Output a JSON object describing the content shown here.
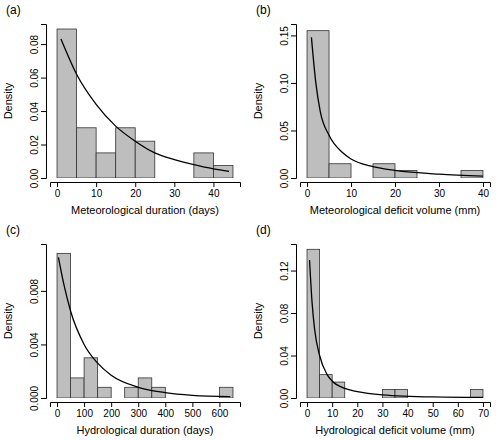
{
  "chart_data": [
    {
      "type": "histogram",
      "title": "(a)",
      "x_label": "Meteorological duration (days)",
      "y_label": "Density",
      "bins": [
        0,
        5,
        10,
        15,
        20,
        25,
        30,
        35,
        40,
        45
      ],
      "counts": [
        0.089,
        0.03,
        0.015,
        0.03,
        0.022,
        0,
        0,
        0.015,
        0.0075
      ],
      "color": "#bebebe",
      "xlim": [
        -1.8,
        46.8
      ],
      "ylim": [
        0,
        0.092
      ],
      "xticks": [
        0,
        10,
        20,
        30,
        40
      ],
      "yticks": [
        {
          "value": 0,
          "label": "0.00"
        },
        {
          "value": 0.02,
          "label": "0.02"
        },
        {
          "value": 0.04,
          "label": "0.04"
        },
        {
          "value": 0.06,
          "label": "0.06"
        },
        {
          "value": 0.08,
          "label": "0.08"
        }
      ],
      "series": [
        {
          "type": "line",
          "color": "#000000",
          "x": [
            1,
            5,
            10,
            15,
            20,
            25,
            30,
            35,
            40,
            44
          ],
          "values": [
            0.083,
            0.062,
            0.044,
            0.031,
            0.022,
            0.015,
            0.011,
            0.008,
            0.0055,
            0.004
          ]
        }
      ]
    },
    {
      "type": "histogram",
      "title": "(b)",
      "x_label": "Meteorological deficit volume (mm)",
      "y_label": "Density",
      "bins": [
        0,
        5,
        10,
        15,
        20,
        25,
        30,
        35,
        40
      ],
      "counts": [
        0.155,
        0.015,
        0,
        0.015,
        0.008,
        0,
        0,
        0.008
      ],
      "color": "#bebebe",
      "xlim": [
        -1.6,
        41.6
      ],
      "ylim": [
        0,
        0.162
      ],
      "xticks": [
        0,
        10,
        20,
        30,
        40
      ],
      "yticks": [
        {
          "value": 0,
          "label": "0.00"
        },
        {
          "value": 0.05,
          "label": "0.05"
        },
        {
          "value": 0.1,
          "label": "0.10"
        },
        {
          "value": 0.15,
          "label": "0.15"
        }
      ],
      "series": [
        {
          "type": "line",
          "color": "#000000",
          "x": [
            1,
            2,
            3,
            5,
            8,
            10,
            15,
            20,
            30,
            40
          ],
          "values": [
            0.148,
            0.1,
            0.07,
            0.045,
            0.027,
            0.02,
            0.012,
            0.008,
            0.004,
            0.002
          ]
        }
      ]
    },
    {
      "type": "histogram",
      "title": "(c)",
      "x_label": "Hydrological duration (days)",
      "y_label": "Density",
      "bins": [
        0,
        50,
        100,
        150,
        200,
        250,
        300,
        350,
        400,
        450,
        500,
        550,
        600,
        650
      ],
      "counts": [
        0.0108,
        0.0015,
        0.003,
        0.0008,
        0,
        0.0008,
        0.0015,
        0.0008,
        0,
        0,
        0,
        0,
        0.0008
      ],
      "color": "#bebebe",
      "xlim": [
        -26,
        676
      ],
      "ylim": [
        0,
        0.0115
      ],
      "xticks": [
        0,
        100,
        200,
        300,
        400,
        500,
        600
      ],
      "yticks": [
        {
          "value": 0,
          "label": "0.000"
        },
        {
          "value": 0.004,
          "label": "0.004"
        },
        {
          "value": 0.008,
          "label": "0.008"
        }
      ],
      "series": [
        {
          "type": "line",
          "color": "#000000",
          "x": [
            5,
            25,
            50,
            100,
            150,
            200,
            300,
            400,
            500,
            640
          ],
          "values": [
            0.0105,
            0.0085,
            0.0065,
            0.004,
            0.0026,
            0.0017,
            0.0008,
            0.0004,
            0.0002,
            0.0001
          ]
        }
      ]
    },
    {
      "type": "histogram",
      "title": "(d)",
      "x_label": "Hydrological deficit volume (mm)",
      "y_label": "Density",
      "bins": [
        0,
        5,
        10,
        15,
        20,
        25,
        30,
        35,
        40,
        45,
        50,
        55,
        60,
        65,
        70
      ],
      "counts": [
        0.14,
        0.022,
        0.015,
        0,
        0,
        0,
        0.008,
        0.008,
        0,
        0,
        0,
        0,
        0,
        0.008
      ],
      "color": "#bebebe",
      "xlim": [
        -2.8,
        72.8
      ],
      "ylim": [
        0,
        0.145
      ],
      "xticks": [
        0,
        10,
        20,
        30,
        40,
        50,
        60,
        70
      ],
      "yticks": [
        {
          "value": 0,
          "label": "0.00"
        },
        {
          "value": 0.04,
          "label": "0.04"
        },
        {
          "value": 0.08,
          "label": "0.08"
        },
        {
          "value": 0.12,
          "label": "0.12"
        }
      ],
      "series": [
        {
          "type": "line",
          "color": "#000000",
          "x": [
            1,
            2,
            3,
            5,
            8,
            10,
            15,
            20,
            30,
            50,
            70
          ],
          "values": [
            0.13,
            0.09,
            0.065,
            0.04,
            0.022,
            0.016,
            0.009,
            0.006,
            0.003,
            0.001,
            0.0005
          ]
        }
      ]
    }
  ]
}
